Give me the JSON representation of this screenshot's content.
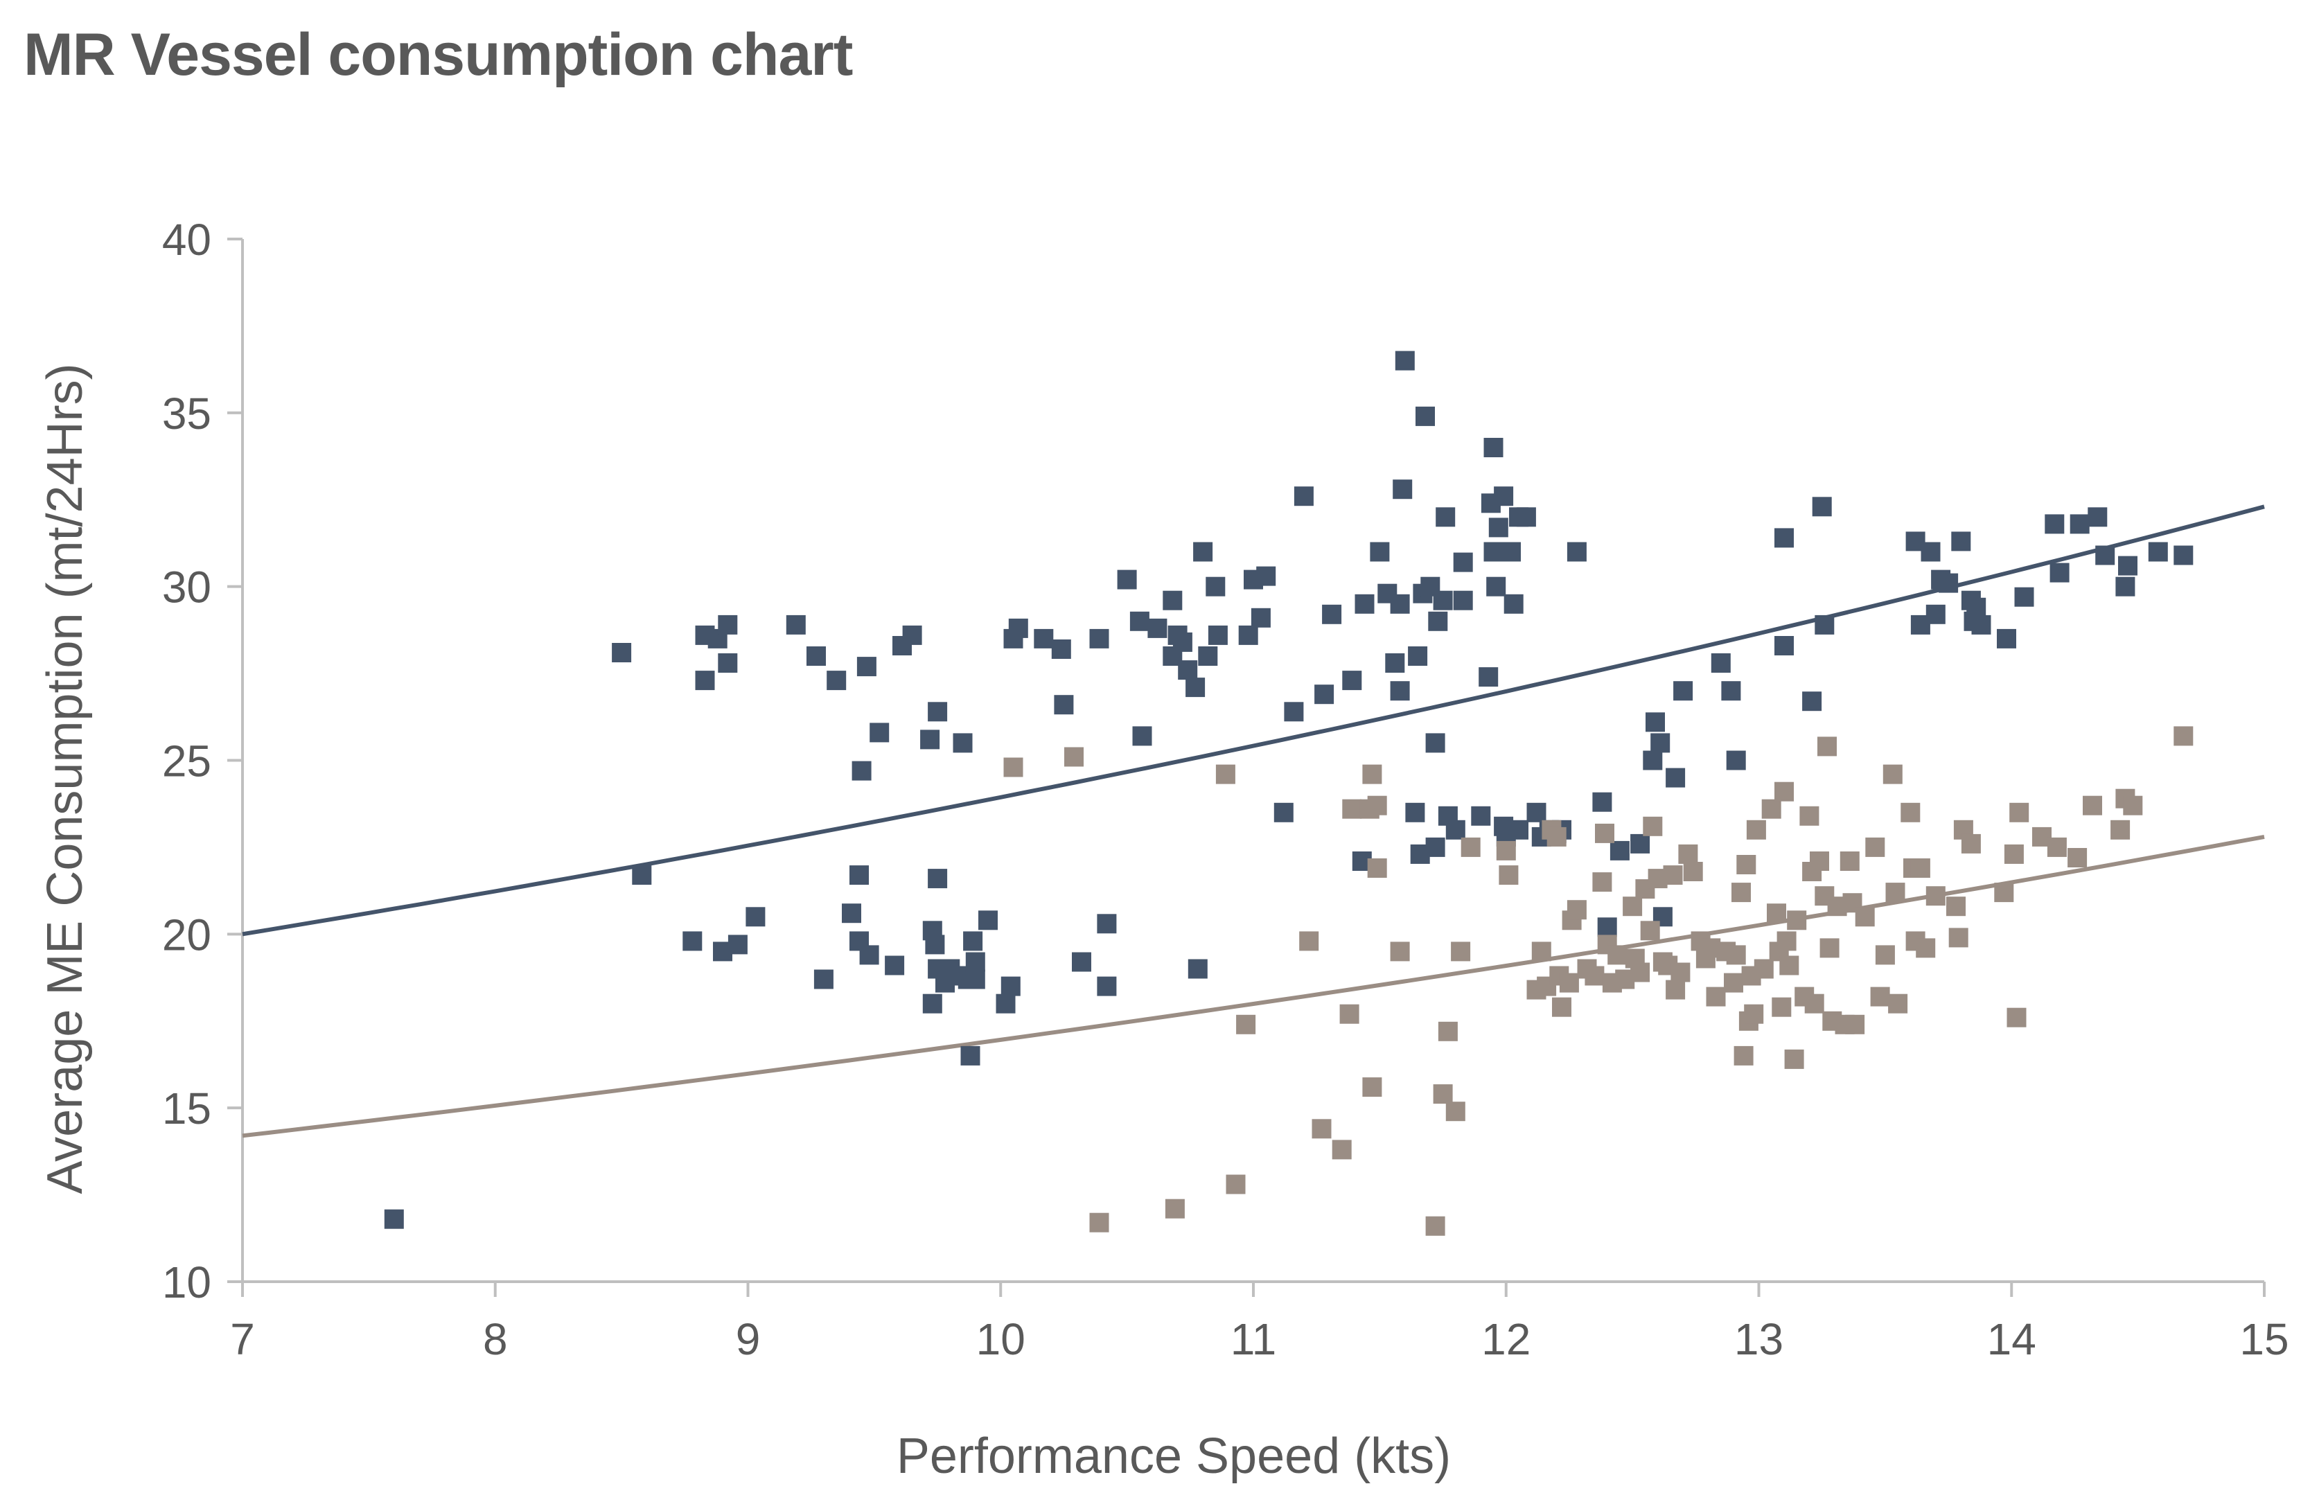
{
  "chart_data": {
    "type": "scatter",
    "title": "MR Vessel consumption chart",
    "xlabel": "Performance Speed (kts)",
    "ylabel": "Average ME Consumption (mt/24Hrs)",
    "xlim": [
      7,
      15
    ],
    "ylim": [
      10,
      40
    ],
    "xticks": [
      "7",
      "8",
      "9",
      "10",
      "11",
      "12",
      "13",
      "14",
      "15"
    ],
    "yticks": [
      "10",
      "15",
      "20",
      "25",
      "30",
      "35",
      "40"
    ],
    "grid": false,
    "legend": "none",
    "series": [
      {
        "color": "#44546A",
        "marker": "square",
        "trendline": {
          "type": "exponential",
          "points": [
            [
              7,
              20.0
            ],
            [
              11,
              25.5
            ],
            [
              15,
              32.3
            ]
          ]
        },
        "points": [
          [
            7.6,
            11.8
          ],
          [
            8.5,
            28.1
          ],
          [
            8.58,
            21.7
          ],
          [
            8.78,
            19.8
          ],
          [
            8.83,
            28.6
          ],
          [
            8.83,
            27.3
          ],
          [
            8.88,
            28.5
          ],
          [
            8.9,
            19.5
          ],
          [
            8.92,
            28.9
          ],
          [
            8.92,
            27.8
          ],
          [
            8.96,
            19.7
          ],
          [
            9.03,
            20.5
          ],
          [
            9.19,
            28.9
          ],
          [
            9.27,
            28.0
          ],
          [
            9.3,
            18.7
          ],
          [
            9.35,
            27.3
          ],
          [
            9.41,
            20.6
          ],
          [
            9.44,
            21.7
          ],
          [
            9.44,
            19.8
          ],
          [
            9.45,
            24.7
          ],
          [
            9.47,
            27.7
          ],
          [
            9.48,
            19.4
          ],
          [
            9.52,
            25.8
          ],
          [
            9.58,
            19.1
          ],
          [
            9.61,
            28.3
          ],
          [
            9.65,
            28.6
          ],
          [
            9.72,
            25.6
          ],
          [
            9.73,
            20.1
          ],
          [
            9.73,
            18.0
          ],
          [
            9.74,
            19.7
          ],
          [
            9.75,
            26.4
          ],
          [
            9.75,
            21.6
          ],
          [
            9.75,
            19.0
          ],
          [
            9.78,
            18.6
          ],
          [
            9.8,
            19.0
          ],
          [
            9.83,
            18.8
          ],
          [
            9.85,
            25.5
          ],
          [
            9.87,
            18.7
          ],
          [
            9.88,
            16.5
          ],
          [
            9.89,
            19.8
          ],
          [
            9.9,
            19.2
          ],
          [
            9.9,
            18.7
          ],
          [
            9.95,
            20.4
          ],
          [
            10.02,
            18.0
          ],
          [
            10.04,
            18.5
          ],
          [
            10.05,
            28.5
          ],
          [
            10.07,
            28.8
          ],
          [
            10.17,
            28.5
          ],
          [
            10.24,
            28.2
          ],
          [
            10.25,
            26.6
          ],
          [
            10.32,
            19.2
          ],
          [
            10.39,
            28.5
          ],
          [
            10.42,
            20.3
          ],
          [
            10.42,
            18.5
          ],
          [
            10.5,
            30.2
          ],
          [
            10.55,
            29.0
          ],
          [
            10.56,
            25.7
          ],
          [
            10.62,
            28.8
          ],
          [
            10.68,
            29.6
          ],
          [
            10.68,
            28.0
          ],
          [
            10.7,
            28.6
          ],
          [
            10.72,
            28.4
          ],
          [
            10.74,
            27.6
          ],
          [
            10.77,
            27.1
          ],
          [
            10.78,
            19.0
          ],
          [
            10.8,
            31.0
          ],
          [
            10.82,
            28.0
          ],
          [
            10.85,
            30.0
          ],
          [
            10.86,
            28.6
          ],
          [
            10.98,
            28.6
          ],
          [
            11.0,
            30.2
          ],
          [
            11.03,
            29.1
          ],
          [
            11.05,
            30.3
          ],
          [
            11.12,
            23.5
          ],
          [
            11.16,
            26.4
          ],
          [
            11.2,
            32.6
          ],
          [
            11.28,
            26.9
          ],
          [
            11.31,
            29.2
          ],
          [
            11.39,
            27.3
          ],
          [
            11.43,
            22.1
          ],
          [
            11.44,
            29.5
          ],
          [
            11.5,
            31.0
          ],
          [
            11.53,
            29.8
          ],
          [
            11.56,
            27.8
          ],
          [
            11.58,
            29.5
          ],
          [
            11.58,
            27.0
          ],
          [
            11.59,
            32.8
          ],
          [
            11.6,
            36.5
          ],
          [
            11.64,
            23.5
          ],
          [
            11.65,
            28.0
          ],
          [
            11.66,
            22.3
          ],
          [
            11.67,
            29.8
          ],
          [
            11.68,
            34.9
          ],
          [
            11.7,
            30.0
          ],
          [
            11.72,
            25.5
          ],
          [
            11.72,
            22.5
          ],
          [
            11.73,
            29.0
          ],
          [
            11.75,
            29.6
          ],
          [
            11.76,
            32.0
          ],
          [
            11.77,
            23.4
          ],
          [
            11.8,
            23.0
          ],
          [
            11.83,
            29.6
          ],
          [
            11.83,
            30.7
          ],
          [
            11.9,
            23.4
          ],
          [
            11.93,
            27.4
          ],
          [
            11.94,
            32.4
          ],
          [
            11.95,
            34.0
          ],
          [
            11.95,
            31.0
          ],
          [
            11.96,
            30.0
          ],
          [
            11.97,
            31.7
          ],
          [
            11.99,
            32.6
          ],
          [
            11.99,
            23.1
          ],
          [
            12.0,
            22.8
          ],
          [
            12.02,
            31.0
          ],
          [
            12.03,
            29.5
          ],
          [
            12.05,
            32.0
          ],
          [
            12.05,
            23.0
          ],
          [
            12.08,
            32.0
          ],
          [
            12.12,
            23.5
          ],
          [
            12.14,
            22.8
          ],
          [
            12.17,
            23.0
          ],
          [
            12.2,
            22.9
          ],
          [
            12.22,
            23.0
          ],
          [
            12.28,
            31.0
          ],
          [
            12.38,
            23.8
          ],
          [
            12.4,
            20.2
          ],
          [
            12.45,
            22.4
          ],
          [
            12.53,
            22.6
          ],
          [
            12.58,
            25.0
          ],
          [
            12.59,
            26.1
          ],
          [
            12.61,
            25.5
          ],
          [
            12.62,
            20.5
          ],
          [
            12.67,
            24.5
          ],
          [
            12.7,
            27.0
          ],
          [
            12.85,
            27.8
          ],
          [
            12.89,
            27.0
          ],
          [
            12.91,
            25.0
          ],
          [
            13.1,
            31.4
          ],
          [
            13.1,
            28.3
          ],
          [
            13.21,
            26.7
          ],
          [
            13.25,
            32.3
          ],
          [
            13.26,
            28.9
          ],
          [
            13.62,
            31.3
          ],
          [
            13.64,
            28.9
          ],
          [
            13.68,
            31.0
          ],
          [
            13.7,
            29.2
          ],
          [
            13.72,
            30.2
          ],
          [
            13.75,
            30.1
          ],
          [
            13.8,
            31.3
          ],
          [
            13.84,
            29.6
          ],
          [
            13.85,
            29.0
          ],
          [
            13.86,
            29.4
          ],
          [
            13.88,
            28.9
          ],
          [
            13.98,
            28.5
          ],
          [
            14.05,
            29.7
          ],
          [
            14.17,
            31.8
          ],
          [
            14.19,
            30.4
          ],
          [
            14.27,
            31.8
          ],
          [
            14.34,
            32.0
          ],
          [
            14.37,
            30.9
          ],
          [
            14.45,
            30.0
          ],
          [
            14.46,
            30.6
          ],
          [
            14.58,
            31.0
          ],
          [
            14.68,
            30.9
          ]
        ]
      },
      {
        "color": "#9A8D84",
        "marker": "square",
        "trendline": {
          "type": "exponential",
          "points": [
            [
              7,
              14.2
            ],
            [
              11,
              17.9
            ],
            [
              15,
              22.8
            ]
          ]
        },
        "points": [
          [
            10.05,
            24.8
          ],
          [
            10.29,
            25.1
          ],
          [
            10.39,
            11.7
          ],
          [
            10.69,
            12.1
          ],
          [
            10.89,
            24.6
          ],
          [
            10.93,
            12.8
          ],
          [
            10.97,
            17.4
          ],
          [
            11.22,
            19.8
          ],
          [
            11.27,
            14.4
          ],
          [
            11.35,
            13.8
          ],
          [
            11.38,
            17.7
          ],
          [
            11.39,
            23.6
          ],
          [
            11.46,
            23.6
          ],
          [
            11.47,
            24.6
          ],
          [
            11.47,
            15.6
          ],
          [
            11.49,
            23.7
          ],
          [
            11.49,
            21.9
          ],
          [
            11.58,
            19.5
          ],
          [
            11.72,
            11.6
          ],
          [
            11.75,
            15.4
          ],
          [
            11.77,
            17.2
          ],
          [
            11.8,
            14.9
          ],
          [
            11.82,
            19.5
          ],
          [
            11.86,
            22.5
          ],
          [
            12.0,
            22.4
          ],
          [
            12.01,
            21.7
          ],
          [
            12.12,
            18.4
          ],
          [
            12.14,
            19.5
          ],
          [
            12.16,
            18.5
          ],
          [
            12.18,
            23.0
          ],
          [
            12.2,
            22.8
          ],
          [
            12.21,
            18.8
          ],
          [
            12.22,
            17.9
          ],
          [
            12.25,
            18.6
          ],
          [
            12.26,
            20.4
          ],
          [
            12.28,
            20.7
          ],
          [
            12.32,
            19.0
          ],
          [
            12.35,
            18.8
          ],
          [
            12.38,
            21.5
          ],
          [
            12.39,
            22.9
          ],
          [
            12.4,
            19.7
          ],
          [
            12.42,
            18.6
          ],
          [
            12.44,
            19.4
          ],
          [
            12.47,
            18.7
          ],
          [
            12.5,
            20.8
          ],
          [
            12.51,
            19.3
          ],
          [
            12.53,
            18.9
          ],
          [
            12.55,
            21.3
          ],
          [
            12.57,
            20.1
          ],
          [
            12.58,
            23.1
          ],
          [
            12.6,
            21.6
          ],
          [
            12.62,
            19.2
          ],
          [
            12.64,
            19.1
          ],
          [
            12.66,
            21.7
          ],
          [
            12.67,
            18.4
          ],
          [
            12.69,
            18.9
          ],
          [
            12.72,
            22.3
          ],
          [
            12.74,
            21.8
          ],
          [
            12.77,
            19.8
          ],
          [
            12.79,
            19.3
          ],
          [
            12.81,
            19.6
          ],
          [
            12.83,
            18.2
          ],
          [
            12.87,
            19.5
          ],
          [
            12.9,
            18.6
          ],
          [
            12.91,
            19.4
          ],
          [
            12.93,
            21.2
          ],
          [
            12.94,
            16.5
          ],
          [
            12.95,
            22.0
          ],
          [
            12.96,
            17.5
          ],
          [
            12.97,
            18.8
          ],
          [
            12.98,
            17.7
          ],
          [
            12.99,
            23.0
          ],
          [
            13.02,
            19.0
          ],
          [
            13.05,
            23.6
          ],
          [
            13.07,
            20.6
          ],
          [
            13.08,
            19.5
          ],
          [
            13.09,
            17.9
          ],
          [
            13.1,
            24.1
          ],
          [
            13.11,
            19.8
          ],
          [
            13.12,
            19.1
          ],
          [
            13.14,
            16.4
          ],
          [
            13.15,
            20.4
          ],
          [
            13.18,
            18.2
          ],
          [
            13.2,
            23.4
          ],
          [
            13.21,
            21.8
          ],
          [
            13.22,
            18.0
          ],
          [
            13.24,
            22.1
          ],
          [
            13.26,
            21.1
          ],
          [
            13.27,
            25.4
          ],
          [
            13.28,
            19.6
          ],
          [
            13.29,
            17.5
          ],
          [
            13.31,
            20.8
          ],
          [
            13.34,
            17.4
          ],
          [
            13.36,
            22.1
          ],
          [
            13.37,
            20.9
          ],
          [
            13.38,
            17.4
          ],
          [
            13.42,
            20.5
          ],
          [
            13.46,
            22.5
          ],
          [
            13.48,
            18.2
          ],
          [
            13.5,
            19.4
          ],
          [
            13.53,
            24.6
          ],
          [
            13.54,
            21.2
          ],
          [
            13.55,
            18.0
          ],
          [
            13.6,
            23.5
          ],
          [
            13.61,
            21.9
          ],
          [
            13.62,
            19.8
          ],
          [
            13.64,
            21.9
          ],
          [
            13.66,
            19.6
          ],
          [
            13.7,
            21.1
          ],
          [
            13.78,
            20.8
          ],
          [
            13.79,
            19.9
          ],
          [
            13.81,
            23.0
          ],
          [
            13.84,
            22.6
          ],
          [
            13.97,
            21.2
          ],
          [
            14.01,
            22.3
          ],
          [
            14.02,
            17.6
          ],
          [
            14.03,
            23.5
          ],
          [
            14.12,
            22.8
          ],
          [
            14.18,
            22.5
          ],
          [
            14.26,
            22.2
          ],
          [
            14.32,
            23.7
          ],
          [
            14.43,
            23.0
          ],
          [
            14.45,
            23.9
          ],
          [
            14.48,
            23.7
          ],
          [
            14.68,
            25.7
          ]
        ]
      }
    ]
  }
}
